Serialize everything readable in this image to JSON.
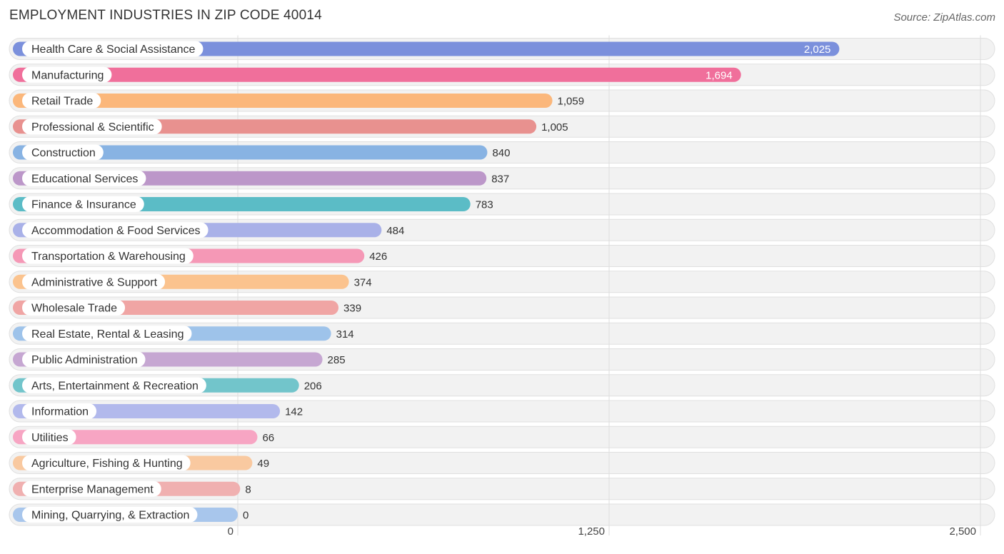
{
  "title": "EMPLOYMENT INDUSTRIES IN ZIP CODE 40014",
  "source": "Source: ZipAtlas.com",
  "chart_data": {
    "type": "bar",
    "orientation": "horizontal",
    "categories": [
      "Health Care & Social Assistance",
      "Manufacturing",
      "Retail Trade",
      "Professional & Scientific",
      "Construction",
      "Educational Services",
      "Finance & Insurance",
      "Accommodation & Food Services",
      "Transportation & Warehousing",
      "Administrative & Support",
      "Wholesale Trade",
      "Real Estate, Rental & Leasing",
      "Public Administration",
      "Arts, Entertainment & Recreation",
      "Information",
      "Utilities",
      "Agriculture, Fishing & Hunting",
      "Enterprise Management",
      "Mining, Quarrying, & Extraction"
    ],
    "values": [
      2025,
      1694,
      1059,
      1005,
      840,
      837,
      783,
      484,
      426,
      374,
      339,
      314,
      285,
      206,
      142,
      66,
      49,
      8,
      0
    ],
    "value_labels": [
      "2,025",
      "1,694",
      "1,059",
      "1,005",
      "840",
      "837",
      "783",
      "484",
      "426",
      "374",
      "339",
      "314",
      "285",
      "206",
      "142",
      "66",
      "49",
      "8",
      "0"
    ],
    "colors": [
      "#7b90dc",
      "#f06f9b",
      "#fbb77b",
      "#e8918f",
      "#88b3e3",
      "#bc97c9",
      "#5bbcc6",
      "#a9b1e8",
      "#f598b6",
      "#fbc38e",
      "#f0a5a4",
      "#9ec3ea",
      "#c6a7d2",
      "#72c5cb",
      "#b2b9ec",
      "#f7a5c3",
      "#f9c9a0",
      "#f0b0b0",
      "#a8c6ec"
    ],
    "x_ticks": [
      0,
      1250,
      2500
    ],
    "x_tick_labels": [
      "0",
      "1,250",
      "2,500"
    ],
    "xlim": [
      0,
      2500
    ],
    "grid": true
  }
}
